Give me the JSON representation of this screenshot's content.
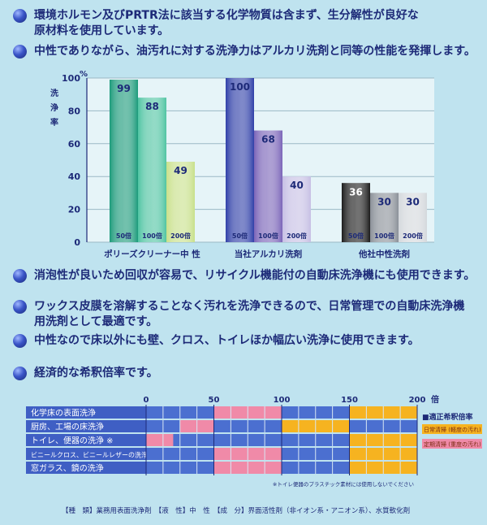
{
  "bullets_top": [
    {
      "text_line1": "環境ホルモン及びPRTR法に該当する化学物質は含まず、生分解性が良好な",
      "text_line2": "原材料を使用しています。"
    },
    {
      "text_line1": "中性でありながら、油汚れに対する洗浄力はアルカリ洗剤と同等の性能を発揮します。",
      "text_line2": ""
    }
  ],
  "bullets_bottom": [
    {
      "text_line1": "消泡性が良いため回収が容易で、リサイクル機能付の自動床洗浄機にも使用できます。",
      "text_line2": ""
    },
    {
      "text_line1": "ワックス皮膜を溶解することなく汚れを洗浄できるので、日常管理での自動床洗浄機",
      "text_line2": "用洗剤として最適です。"
    },
    {
      "text_line1": "中性なので床以外にも壁、クロス、トイレほか幅広い洗浄に使用できます。",
      "text_line2": ""
    },
    {
      "text_line1": "経済的な希釈倍率です。",
      "text_line2": ""
    }
  ],
  "chart_data": [
    {
      "type": "bar",
      "unit_label": "%",
      "ylabel": "洗浄率",
      "ylim": [
        0,
        100
      ],
      "yticks": [
        "0",
        "20",
        "40",
        "60",
        "80",
        "100"
      ],
      "groups": [
        {
          "name": "ポリーズクリーナー中 性",
          "bars": [
            {
              "label": "50倍",
              "value": 99
            },
            {
              "label": "100倍",
              "value": 88
            },
            {
              "label": "200倍",
              "value": 49
            }
          ],
          "colors": [
            "#1b9a7a",
            "#4fc4a2",
            "#c8e08a"
          ]
        },
        {
          "name": "当社アルカリ洗剤",
          "bars": [
            {
              "label": "50倍",
              "value": 100
            },
            {
              "label": "100倍",
              "value": 68
            },
            {
              "label": "200倍",
              "value": 40
            }
          ],
          "colors": [
            "#2f3fa8",
            "#7a64b8",
            "#c6bfe4"
          ]
        },
        {
          "name": "他社中性洗剤",
          "bars": [
            {
              "label": "50倍",
              "value": 36
            },
            {
              "label": "100倍",
              "value": 30
            },
            {
              "label": "200倍",
              "value": 30
            }
          ],
          "colors": [
            "#1a1a1a",
            "#8a9098",
            "#d4d8dc"
          ]
        }
      ]
    },
    {
      "type": "table",
      "xunit": "倍",
      "xticks": [
        0,
        50,
        100,
        150,
        200
      ],
      "rows": [
        {
          "label": "化学床の表面洗浄",
          "pink": [
            [
              50,
              100
            ]
          ],
          "orange": [
            [
              150,
              200
            ]
          ]
        },
        {
          "label": "厨房、工場の床洗浄",
          "pink": [
            [
              25,
              50
            ]
          ],
          "orange": [
            [
              100,
              150
            ]
          ]
        },
        {
          "label": "トイレ、便器の洗浄 ※",
          "pink": [
            [
              0,
              20
            ]
          ],
          "orange": [
            [
              150,
              200
            ]
          ]
        },
        {
          "label": "ビニールクロス、ビニールレザーの洗浄",
          "pink": [
            [
              50,
              100
            ]
          ],
          "orange": [
            [
              150,
              200
            ]
          ]
        },
        {
          "label": "窓ガラス、鏡の洗浄",
          "pink": [
            [
              50,
              100
            ]
          ],
          "orange": [
            [
              150,
              200
            ]
          ]
        }
      ],
      "legend": {
        "title": "■適正希釈倍率",
        "orange_label": "日常清掃 (軽度の汚れ)",
        "pink_label": "定期清掃 (重度の汚れ)"
      },
      "footnote": "※トイレ便器のプラスチック素材には使用しないでください",
      "colors": {
        "base": "#4b6fd0",
        "pink": "#f08aa8",
        "orange": "#f6b320"
      }
    }
  ],
  "footer": "【種　類】業務用表面洗浄剤　【液　性】中　性　【成　分】界面活性剤（非イオン系・アニオン系）、水質軟化剤"
}
